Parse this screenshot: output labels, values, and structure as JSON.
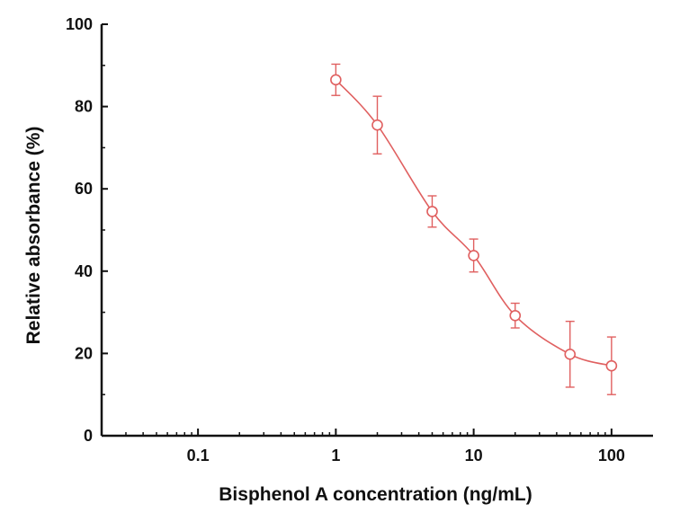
{
  "chart_data": {
    "type": "line",
    "xlabel": "Bisphenol A concentration (ng/mL)",
    "ylabel": "Relative absorbance (%)",
    "x_scale": "log",
    "xlim": [
      0.02,
      200
    ],
    "ylim": [
      0,
      100
    ],
    "x_ticks": [
      0.1,
      1,
      10,
      100
    ],
    "x_tick_labels": [
      "0.1",
      "1",
      "10",
      "100"
    ],
    "y_ticks": [
      0,
      20,
      40,
      60,
      80,
      100
    ],
    "y_tick_labels": [
      "0",
      "20",
      "40",
      "60",
      "80",
      "100"
    ],
    "grid": false,
    "colors": {
      "series": "#e06060",
      "axis": "#111111"
    },
    "series": [
      {
        "x": [
          1,
          2,
          5,
          10,
          20,
          50,
          100
        ],
        "y": [
          86.5,
          75.5,
          54.5,
          43.8,
          29.2,
          19.8,
          17.0
        ],
        "error": [
          3.8,
          7.0,
          3.8,
          4.0,
          3.0,
          8.0,
          7.0
        ]
      }
    ]
  }
}
